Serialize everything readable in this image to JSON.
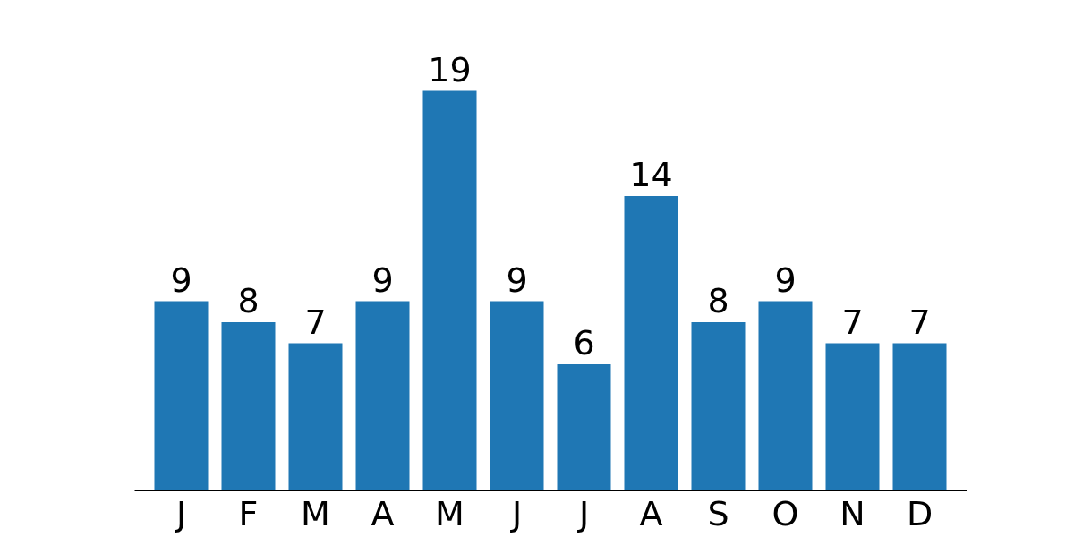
{
  "chart_data": {
    "type": "bar",
    "categories": [
      "J",
      "F",
      "M",
      "A",
      "M",
      "J",
      "J",
      "A",
      "S",
      "O",
      "N",
      "D"
    ],
    "values": [
      9,
      8,
      7,
      9,
      19,
      9,
      6,
      14,
      8,
      9,
      7,
      7
    ],
    "color": "#1f77b4",
    "data_labels": true
  }
}
